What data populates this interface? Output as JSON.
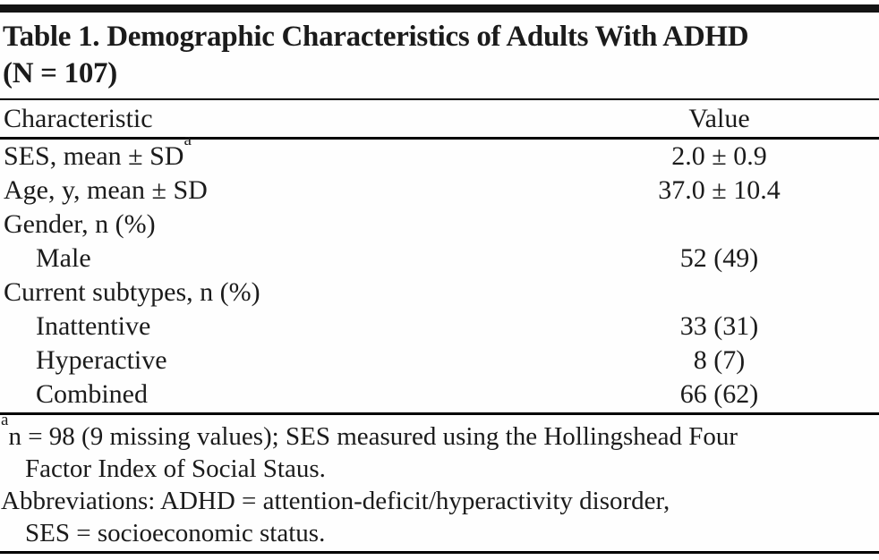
{
  "document": {
    "title_line1": "Table 1. Demographic Characteristics of Adults With ADHD",
    "title_line2": "(N = 107)"
  },
  "table": {
    "columns": {
      "characteristic": "Characteristic",
      "value": "Value"
    },
    "rows": [
      {
        "label": "SES, mean ± SD",
        "sup": "a",
        "value": "2.0 ± 0.9",
        "indent": false
      },
      {
        "label": "Age, y, mean ± SD",
        "sup": "",
        "value": "37.0 ± 10.4",
        "indent": false
      },
      {
        "label": "Gender, n (%)",
        "sup": "",
        "value": "",
        "indent": false
      },
      {
        "label": "Male",
        "sup": "",
        "value": "52 (49)",
        "indent": true
      },
      {
        "label": "Current subtypes, n (%)",
        "sup": "",
        "value": "",
        "indent": false
      },
      {
        "label": "Inattentive",
        "sup": "",
        "value": "33 (31)",
        "indent": true
      },
      {
        "label": "Hyperactive",
        "sup": "",
        "value": "8 (7)",
        "indent": true
      },
      {
        "label": "Combined",
        "sup": "",
        "value": "66 (62)",
        "indent": true
      }
    ],
    "footnotes": [
      {
        "sup": "a",
        "lines": [
          "n = 98 (9 missing values); SES measured using the Hollingshead Four",
          "Factor Index of Social Staus."
        ]
      },
      {
        "sup": "",
        "lines": [
          "Abbreviations: ADHD = attention-deficit/hyperactivity disorder,",
          "SES = socioeconomic status."
        ]
      }
    ]
  },
  "colors": {
    "text": "#1b1b1b",
    "rule": "#000000",
    "top_bar": "#141414",
    "background": "#fefefe"
  }
}
